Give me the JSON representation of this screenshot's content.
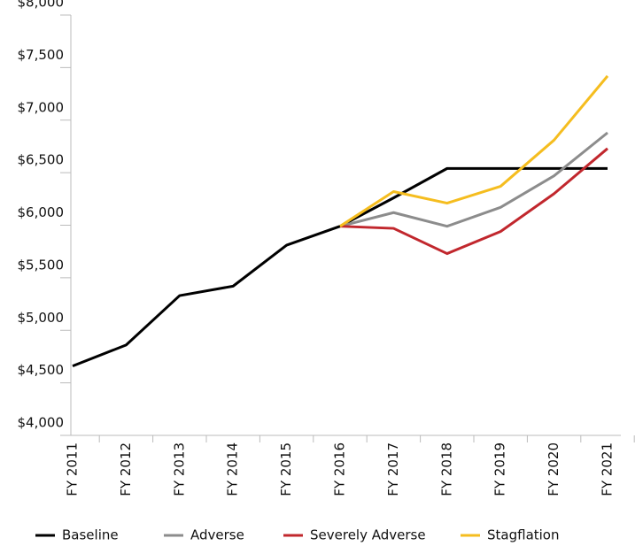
{
  "chart_data": {
    "type": "line",
    "categories": [
      "FY 2011",
      "FY 2012",
      "FY 2013",
      "FY 2014",
      "FY 2015",
      "FY 2016",
      "FY 2017",
      "FY 2018",
      "FY 2019",
      "FY 2020",
      "FY 2021"
    ],
    "series": [
      {
        "name": "Baseline",
        "color": "#000000",
        "values": [
          4660,
          4860,
          5330,
          5420,
          5810,
          5990,
          6260,
          6540,
          6540,
          6540,
          6540
        ]
      },
      {
        "name": "Adverse",
        "color": "#8c8c8c",
        "values": [
          null,
          null,
          null,
          null,
          null,
          5990,
          6120,
          5990,
          6170,
          6470,
          6880
        ]
      },
      {
        "name": "Severely Adverse",
        "color": "#c1272d",
        "values": [
          null,
          null,
          null,
          null,
          null,
          5990,
          5970,
          5730,
          5940,
          6300,
          6730
        ]
      },
      {
        "name": "Stagflation",
        "color": "#f5bd1f",
        "values": [
          null,
          null,
          null,
          null,
          null,
          5990,
          6320,
          6210,
          6370,
          6810,
          7420
        ]
      }
    ],
    "ylim": [
      4000,
      8000
    ],
    "yticks": [
      {
        "value": 4000,
        "label": "$4,000"
      },
      {
        "value": 4500,
        "label": "$4,500"
      },
      {
        "value": 5000,
        "label": "$5,000"
      },
      {
        "value": 5500,
        "label": "$5,500"
      },
      {
        "value": 6000,
        "label": "$6,000"
      },
      {
        "value": 6500,
        "label": "$6,500"
      },
      {
        "value": 7000,
        "label": "$7,000"
      },
      {
        "value": 7500,
        "label": "$7,500"
      },
      {
        "value": 8000,
        "label": "$8,000"
      }
    ],
    "grid": false,
    "legend": "bottom"
  }
}
